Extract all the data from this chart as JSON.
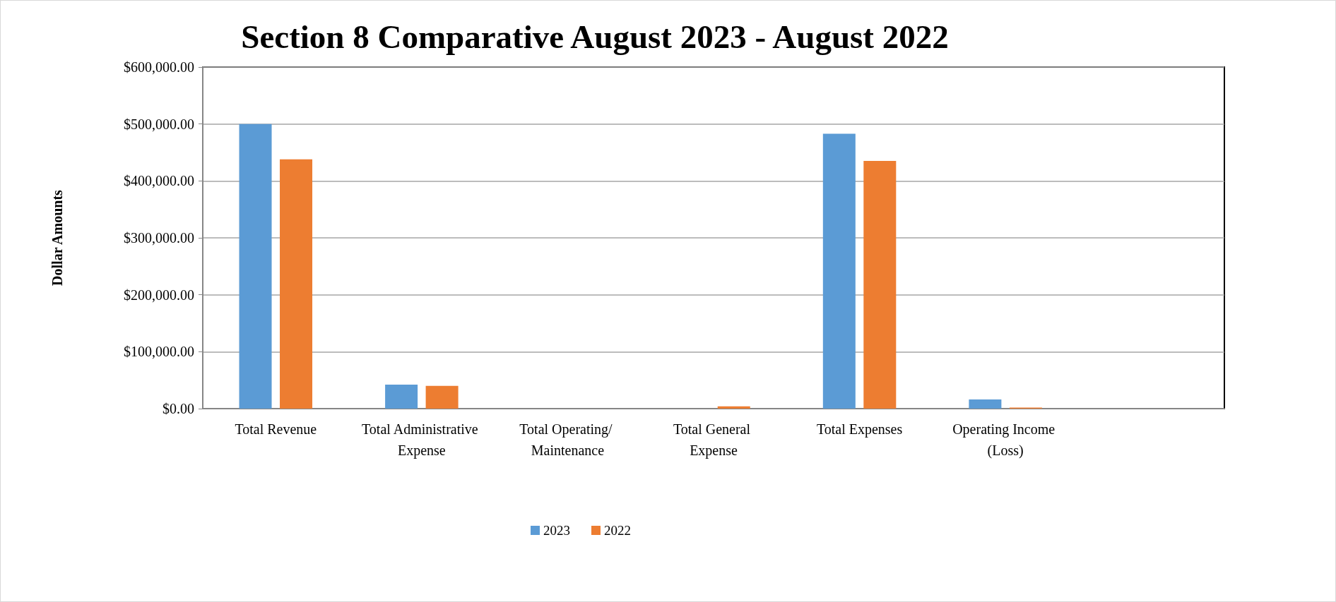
{
  "chart_data": {
    "type": "bar",
    "title": "Section 8 Comparative August 2023 - August 2022",
    "ylabel": "Dollar Amounts",
    "categories": [
      "Total Revenue",
      "Total Administrative Expense",
      "Total Operating/ Maintenance",
      "Total General Expense",
      "Total Expenses",
      "Operating Income (Loss)",
      null
    ],
    "series": [
      {
        "name": "2023",
        "color": "#5b9bd5",
        "values": [
          500000,
          42000,
          0,
          0,
          483000,
          16000,
          null
        ]
      },
      {
        "name": "2022",
        "color": "#ed7d31",
        "values": [
          438000,
          40000,
          0,
          4000,
          435000,
          2000,
          null
        ]
      }
    ],
    "ylim": [
      0,
      600000
    ],
    "yticks": [
      {
        "value": 0,
        "label": "$0.00"
      },
      {
        "value": 100000,
        "label": "$100,000.00"
      },
      {
        "value": 200000,
        "label": "$200,000.00"
      },
      {
        "value": 300000,
        "label": "$300,000.00"
      },
      {
        "value": 400000,
        "label": "$400,000.00"
      },
      {
        "value": 500000,
        "label": "$500,000.00"
      },
      {
        "value": 600000,
        "label": "$600,000.00"
      }
    ],
    "grid": "y",
    "legend": "bottom"
  }
}
